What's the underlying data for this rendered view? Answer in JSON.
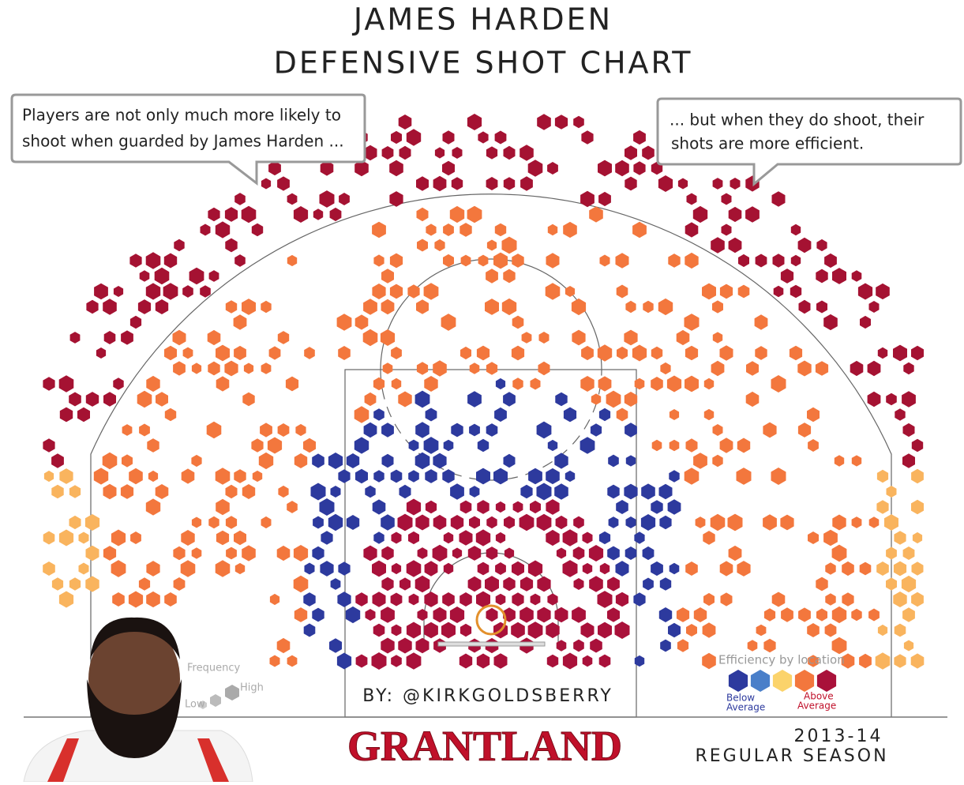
{
  "title": [
    "JAMES HARDEN",
    "DEFENSIVE SHOT CHART"
  ],
  "callouts": [
    {
      "lines": [
        "Players are not only much more likely to",
        "shoot when guarded by James Harden ..."
      ]
    },
    {
      "lines": [
        "... but when they do shoot, their",
        "shots are more efficient."
      ]
    }
  ],
  "byline": "BY: @KIRKGOLDSBERRY",
  "brand": "GRANTLAND",
  "season": [
    "2013-14",
    "REGULAR SEASON"
  ],
  "legend": {
    "frequency": {
      "title": "Frequency",
      "low": "Low",
      "high": "High"
    },
    "efficiency": {
      "title": "Efficiency by location",
      "below": [
        "Below",
        "Average"
      ],
      "above": [
        "Above",
        "Average"
      ]
    }
  }
}
